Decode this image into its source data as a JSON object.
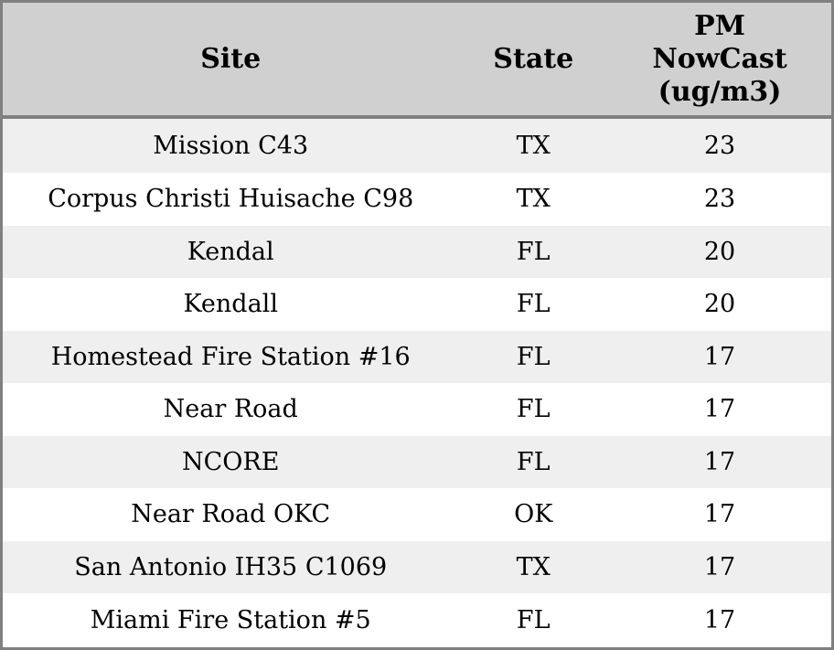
{
  "table": {
    "columns": {
      "site": {
        "label": "Site"
      },
      "state": {
        "label": "State"
      },
      "pm": {
        "label_lines": [
          "PM",
          "NowCast",
          "(ug/m3)"
        ]
      }
    },
    "rows": [
      {
        "site": "Mission C43",
        "state": "TX",
        "pm": "23"
      },
      {
        "site": "Corpus Christi Huisache C98",
        "state": "TX",
        "pm": "23"
      },
      {
        "site": "Kendal",
        "state": "FL",
        "pm": "20"
      },
      {
        "site": "Kendall",
        "state": "FL",
        "pm": "20"
      },
      {
        "site": "Homestead Fire Station #16",
        "state": "FL",
        "pm": "17"
      },
      {
        "site": "Near Road",
        "state": "FL",
        "pm": "17"
      },
      {
        "site": "NCORE",
        "state": "FL",
        "pm": "17"
      },
      {
        "site": "Near Road OKC",
        "state": "OK",
        "pm": "17"
      },
      {
        "site": "San Antonio IH35 C1069",
        "state": "TX",
        "pm": "17"
      },
      {
        "site": "Miami Fire Station #5",
        "state": "FL",
        "pm": "17"
      }
    ],
    "colors": {
      "header_bg": "#d0d0d0",
      "border": "#808080",
      "row_alt_bg": "#efefef",
      "row_bg": "#ffffff",
      "text": "#000000"
    }
  }
}
